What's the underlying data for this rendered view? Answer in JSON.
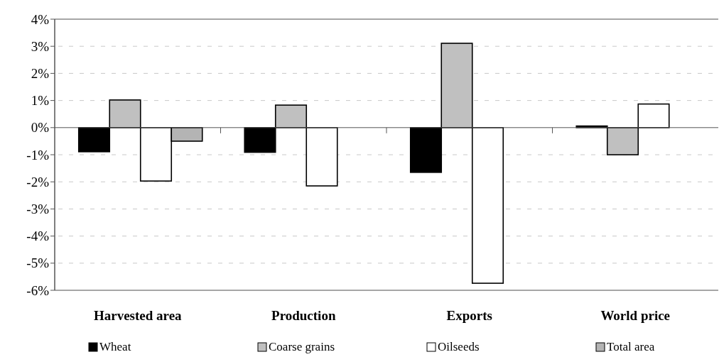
{
  "chart_data": {
    "type": "bar",
    "categories": [
      "Harvested area",
      "Production",
      "Exports",
      "World price"
    ],
    "series": [
      {
        "name": "Wheat",
        "color": "#000000",
        "values": [
          -0.89,
          -0.91,
          -1.65,
          0.06
        ]
      },
      {
        "name": "Coarse grains",
        "color": "#c0c0c0",
        "values": [
          1.02,
          0.83,
          3.11,
          -1.0
        ]
      },
      {
        "name": "Oilseeds",
        "color": "#ffffff",
        "values": [
          -1.97,
          -2.15,
          -5.74,
          0.87
        ]
      },
      {
        "name": "Total area",
        "color": "#b4b4b4",
        "values": [
          -0.5,
          null,
          null,
          null
        ]
      }
    ],
    "ylim": [
      -6,
      4
    ],
    "yticks": [
      {
        "value": -6,
        "label": "-6%"
      },
      {
        "value": -5,
        "label": "-5%"
      },
      {
        "value": -4,
        "label": "-4%"
      },
      {
        "value": -3,
        "label": "-3%"
      },
      {
        "value": -2,
        "label": "-2%"
      },
      {
        "value": -1,
        "label": "-1%"
      },
      {
        "value": 0,
        "label": "0%"
      },
      {
        "value": 1,
        "label": "1%"
      },
      {
        "value": 2,
        "label": "2%"
      },
      {
        "value": 3,
        "label": "3%"
      },
      {
        "value": 4,
        "label": "4%"
      }
    ],
    "grid": "y",
    "legend": "bottom"
  }
}
